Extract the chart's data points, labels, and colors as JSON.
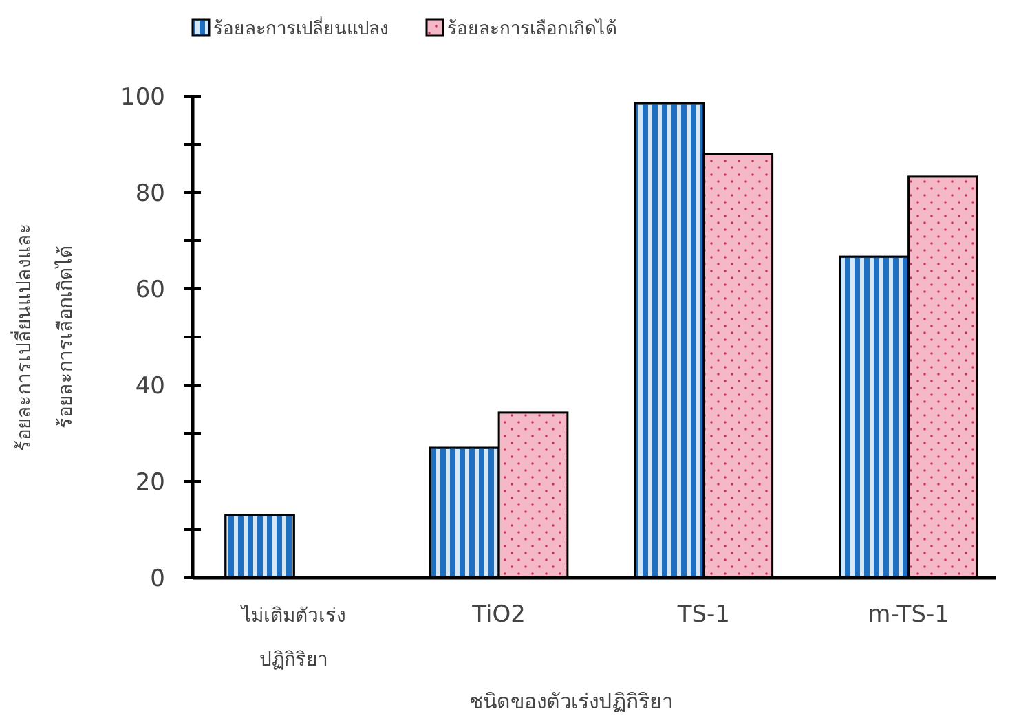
{
  "chart_data": {
    "type": "bar",
    "xlabel": "ชนิดของตัวเร่งปฏิกิริยา",
    "ylabel": "ร้อยละการเปลี่ยนแปลงและ\nร้อยละการเลือกเกิดได้",
    "categories": [
      "ไม่เติมตัวเร่ง\nปฏิกิริยา",
      "TiO2",
      "TS-1",
      "m-TS-1"
    ],
    "series": [
      {
        "name": "ร้อยละการเปลี่ยนแปลง",
        "color": "#1f6fc0",
        "values": [
          13,
          27,
          98.6,
          66.7
        ]
      },
      {
        "name": "ร้อยละการเลือกเกิดได้",
        "color": "#f4b8c6",
        "values": [
          null,
          34.3,
          88,
          83.3
        ]
      }
    ],
    "ylim": [
      0,
      100
    ],
    "yticks": [
      0,
      {
        "value": 10,
        "label": null
      },
      20,
      {
        "value": 30,
        "label": null
      },
      40,
      {
        "value": 50,
        "label": null
      },
      60,
      {
        "value": 70,
        "label": null
      },
      80,
      {
        "value": 90,
        "label": null
      },
      100
    ],
    "grid": false,
    "legend": "top left"
  }
}
